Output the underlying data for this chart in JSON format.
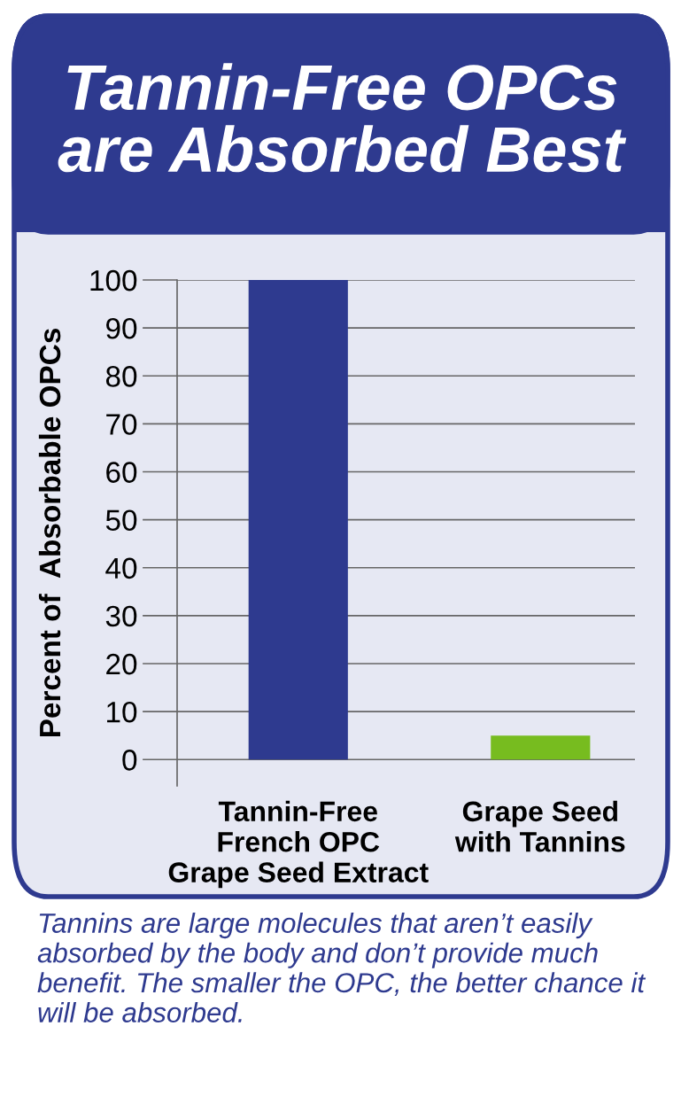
{
  "chart_data": {
    "type": "bar",
    "title": "Tannin-Free OPCs\nare Absorbed Best",
    "ylabel": "Percent of  Absorbable OPCs",
    "categories": [
      "Tannin-Free\nFrench OPC\nGrape Seed Extract",
      "Grape Seed\nwith Tannins"
    ],
    "values": [
      100,
      5
    ],
    "colors": [
      "#2e3a8f",
      "#77bc1f"
    ],
    "ylim": [
      -5.5,
      100
    ],
    "yticks": [
      0,
      10,
      20,
      30,
      40,
      50,
      60,
      70,
      80,
      90,
      100
    ],
    "grid": "y",
    "annotations": [
      "Tannins are large molecules that aren’t easily absorbed by the body and don’t provide much benefit. The smaller the OPC, the better chance it will be absorbed."
    ]
  }
}
